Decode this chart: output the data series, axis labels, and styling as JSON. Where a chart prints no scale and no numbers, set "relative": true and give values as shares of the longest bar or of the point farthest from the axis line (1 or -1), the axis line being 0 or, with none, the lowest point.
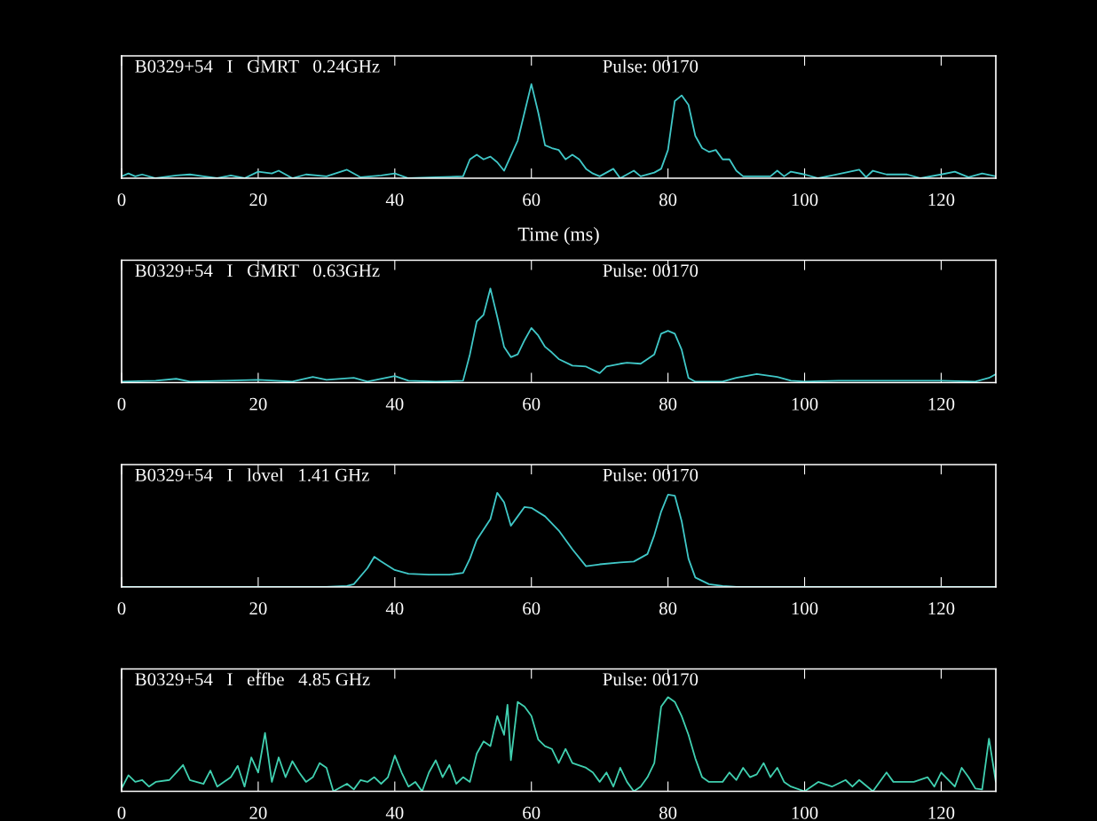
{
  "chart_data": [
    {
      "type": "line",
      "relative": true,
      "xlabel": "Time (ms)",
      "xlim": [
        0,
        128
      ],
      "xticks": [
        0,
        20,
        40,
        60,
        80,
        100,
        120
      ],
      "annotations": [
        "B0329+54   I   GMRT   0.24GHz",
        "Pulse: 00170"
      ],
      "series": [
        {
          "color": "#40c8c8",
          "x": [
            0,
            1,
            2,
            3,
            5,
            8,
            10,
            12,
            14,
            16,
            18,
            20,
            22,
            23,
            25,
            27,
            30,
            33,
            35,
            38,
            40,
            42,
            46,
            50,
            51,
            52,
            53,
            54,
            55,
            56,
            58,
            59,
            60,
            61,
            62,
            63,
            64,
            65,
            66,
            67,
            68,
            69,
            70,
            72,
            73,
            75,
            76,
            78,
            79,
            80,
            81,
            82,
            83,
            84,
            85,
            86,
            87,
            88,
            89,
            90,
            91,
            95,
            96,
            97,
            98,
            100,
            102,
            104,
            108,
            109,
            110,
            112,
            115,
            117,
            120,
            122,
            124,
            126,
            128
          ],
          "values": [
            0.02,
            0.05,
            0.02,
            0.04,
            0,
            0.03,
            0.04,
            0.02,
            0,
            0.03,
            0,
            0.07,
            0.05,
            0.08,
            0,
            0.04,
            0.02,
            0.09,
            0.01,
            0.03,
            0.05,
            0,
            0.01,
            0.02,
            0.2,
            0.25,
            0.2,
            0.23,
            0.17,
            0.08,
            0.4,
            0.7,
            1.0,
            0.7,
            0.35,
            0.32,
            0.3,
            0.2,
            0.25,
            0.2,
            0.1,
            0.05,
            0.02,
            0.1,
            0,
            0.08,
            0.02,
            0.06,
            0.1,
            0.3,
            0.82,
            0.88,
            0.78,
            0.45,
            0.32,
            0.28,
            0.3,
            0.2,
            0.2,
            0.08,
            0.02,
            0.02,
            0.08,
            0.02,
            0.07,
            0.04,
            0,
            0.03,
            0.09,
            0.01,
            0.08,
            0.04,
            0.04,
            0,
            0.04,
            0.07,
            0.01,
            0.05,
            0.02
          ]
        }
      ]
    },
    {
      "type": "line",
      "relative": true,
      "xlim": [
        0,
        128
      ],
      "xticks": [
        0,
        20,
        40,
        60,
        80,
        100,
        120
      ],
      "annotations": [
        "B0329+54   I   GMRT   0.63GHz",
        "Pulse: 00170"
      ],
      "series": [
        {
          "color": "#40c8c8",
          "x": [
            0,
            5,
            8,
            10,
            15,
            20,
            25,
            28,
            30,
            34,
            36,
            40,
            42,
            46,
            50,
            51,
            52,
            53,
            54,
            55,
            56,
            57,
            58,
            59,
            60,
            61,
            62,
            63,
            64,
            66,
            68,
            70,
            71,
            73,
            74,
            76,
            78,
            79,
            80,
            81,
            82,
            83,
            84,
            88,
            90,
            93,
            96,
            98,
            100,
            105,
            110,
            115,
            120,
            125,
            127,
            128
          ],
          "values": [
            0.01,
            0.02,
            0.04,
            0.01,
            0.02,
            0.03,
            0.01,
            0.06,
            0.03,
            0.05,
            0.01,
            0.07,
            0.02,
            0.01,
            0.02,
            0.3,
            0.65,
            0.72,
            1.0,
            0.7,
            0.38,
            0.27,
            0.3,
            0.45,
            0.58,
            0.5,
            0.38,
            0.32,
            0.25,
            0.18,
            0.17,
            0.1,
            0.17,
            0.2,
            0.21,
            0.2,
            0.3,
            0.52,
            0.55,
            0.52,
            0.35,
            0.05,
            0.01,
            0.01,
            0.05,
            0.09,
            0.06,
            0.02,
            0.01,
            0.02,
            0.02,
            0.02,
            0.02,
            0.01,
            0.05,
            0.09
          ]
        }
      ]
    },
    {
      "type": "line",
      "relative": true,
      "xlim": [
        0,
        128
      ],
      "xticks": [
        0,
        20,
        40,
        60,
        80,
        100,
        120
      ],
      "annotations": [
        "B0329+54   I   lovel   1.41 GHz",
        "Pulse: 00170"
      ],
      "series": [
        {
          "color": "#40c8c8",
          "x": [
            0,
            30,
            33,
            34,
            36,
            37,
            38,
            40,
            42,
            45,
            48,
            50,
            51,
            52,
            54,
            55,
            56,
            57,
            58,
            59,
            60,
            62,
            64,
            66,
            68,
            70,
            73,
            75,
            77,
            78,
            79,
            80,
            81,
            82,
            83,
            84,
            86,
            88,
            90,
            128
          ],
          "values": [
            0,
            0,
            0.01,
            0.03,
            0.2,
            0.32,
            0.27,
            0.18,
            0.14,
            0.13,
            0.13,
            0.15,
            0.3,
            0.5,
            0.72,
            1.0,
            0.9,
            0.65,
            0.75,
            0.85,
            0.84,
            0.75,
            0.6,
            0.4,
            0.22,
            0.24,
            0.26,
            0.27,
            0.35,
            0.55,
            0.8,
            0.98,
            0.97,
            0.7,
            0.3,
            0.1,
            0.03,
            0.01,
            0,
            0
          ]
        }
      ]
    },
    {
      "type": "line",
      "relative": true,
      "xlim": [
        0,
        128
      ],
      "xticks": [
        0,
        20,
        40,
        60,
        80,
        100,
        120
      ],
      "annotations": [
        "B0329+54   I   effbe   4.85 GHz",
        "Pulse: 00170"
      ],
      "series": [
        {
          "color": "#40d0b0",
          "x": [
            0,
            1,
            2,
            3,
            4,
            5,
            7,
            8,
            9,
            10,
            12,
            13,
            14,
            16,
            17,
            18,
            19,
            20,
            21,
            22,
            23,
            24,
            25,
            26,
            27,
            28,
            29,
            30,
            31,
            33,
            34,
            35,
            36,
            37,
            38,
            39,
            40,
            41,
            42,
            43,
            44,
            45,
            46,
            47,
            48,
            49,
            50,
            51,
            52,
            53,
            54,
            55,
            56,
            56.5,
            57,
            58,
            59,
            60,
            61,
            62,
            63,
            64,
            65,
            66,
            68,
            69,
            70,
            71,
            72,
            73,
            74,
            75,
            76,
            77,
            78,
            79,
            80,
            81,
            82,
            83,
            84,
            85,
            86,
            88,
            89,
            90,
            91,
            92,
            93,
            94,
            95,
            96,
            97,
            98,
            100,
            102,
            104,
            106,
            107,
            108,
            110,
            112,
            113,
            116,
            118,
            119,
            120,
            122,
            123,
            124,
            125,
            126,
            127,
            128
          ],
          "values": [
            0.03,
            0.17,
            0.1,
            0.12,
            0.05,
            0.1,
            0.12,
            0.2,
            0.28,
            0.12,
            0.08,
            0.22,
            0.05,
            0.15,
            0.27,
            0.05,
            0.36,
            0.2,
            0.62,
            0.1,
            0.36,
            0.15,
            0.32,
            0.2,
            0.1,
            0.15,
            0.3,
            0.25,
            0,
            0.08,
            0.02,
            0.12,
            0.1,
            0.15,
            0.08,
            0.15,
            0.38,
            0.2,
            0.05,
            0.1,
            0,
            0.2,
            0.33,
            0.15,
            0.28,
            0.08,
            0.15,
            0.1,
            0.4,
            0.53,
            0.48,
            0.8,
            0.6,
            0.92,
            0.33,
            0.95,
            0.9,
            0.8,
            0.55,
            0.48,
            0.45,
            0.3,
            0.45,
            0.3,
            0.25,
            0.2,
            0.1,
            0.2,
            0.05,
            0.25,
            0.1,
            0,
            0.05,
            0.15,
            0.3,
            0.9,
            1.0,
            0.95,
            0.8,
            0.6,
            0.35,
            0.15,
            0.1,
            0.1,
            0.2,
            0.12,
            0.25,
            0.15,
            0.18,
            0.3,
            0.15,
            0.25,
            0.1,
            0.05,
            0,
            0.1,
            0.05,
            0.12,
            0.05,
            0.12,
            0,
            0.2,
            0.1,
            0.1,
            0.15,
            0.05,
            0.2,
            0.05,
            0.25,
            0.15,
            0.03,
            0.02,
            0.56,
            0.1
          ]
        }
      ]
    }
  ]
}
